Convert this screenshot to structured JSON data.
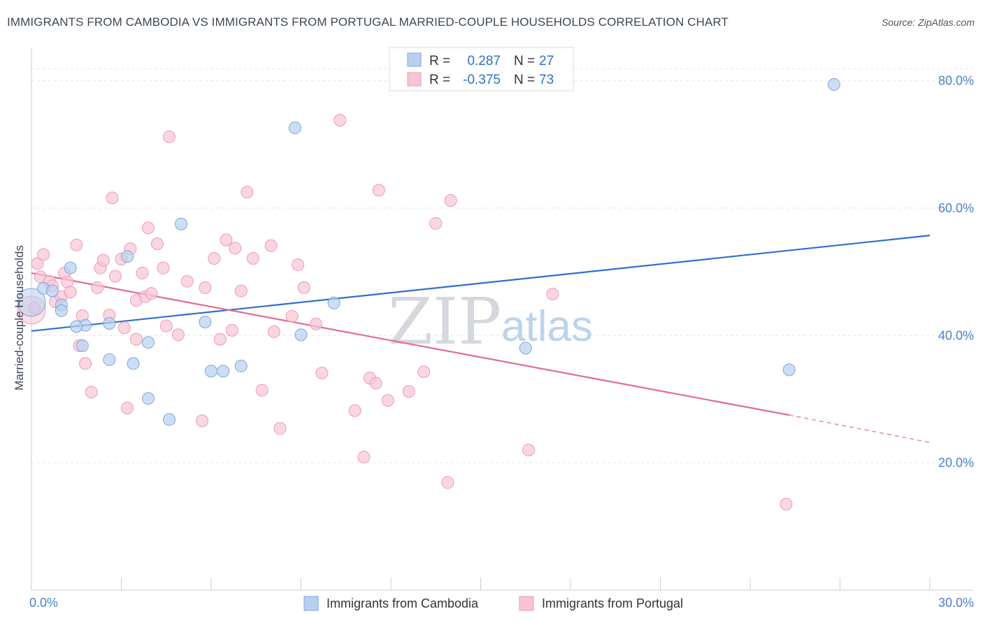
{
  "header": {
    "title": "IMMIGRANTS FROM CAMBODIA VS IMMIGRANTS FROM PORTUGAL MARRIED-COUPLE HOUSEHOLDS CORRELATION CHART",
    "source": "Source: ZipAtlas.com"
  },
  "legend": {
    "r_label": "R =",
    "n_label": "N =",
    "cambodia": {
      "r": "0.287",
      "n": "27"
    },
    "portugal": {
      "r": "-0.375",
      "n": "73"
    }
  },
  "watermark": {
    "zip": "ZIP",
    "atlas": "atlas"
  },
  "colors": {
    "cambodia_fill": "#b8d0f0",
    "cambodia_stroke": "#7ea6e0",
    "cambodia_line": "#2f6fce",
    "portugal_fill": "#f8c4d4",
    "portugal_stroke": "#ee9ab5",
    "portugal_line": "#e06c97"
  },
  "chart_data": {
    "type": "scatter",
    "ylabel": "Married-couple Households",
    "xlim": [
      0,
      30
    ],
    "ylim": [
      0,
      85
    ],
    "x_ticks": [
      "0.0%",
      "30.0%"
    ],
    "y_ticks": [
      {
        "v": 20,
        "label": "20.0%"
      },
      {
        "v": 40,
        "label": "40.0%"
      },
      {
        "v": 60,
        "label": "60.0%"
      },
      {
        "v": 80,
        "label": "80.0%"
      }
    ],
    "series": [
      {
        "name": "Immigrants from Cambodia",
        "points": [
          [
            0.0,
            45.2
          ],
          [
            0.4,
            47.4
          ],
          [
            1.0,
            44.8
          ],
          [
            1.3,
            50.6
          ],
          [
            1.0,
            43.9
          ],
          [
            1.8,
            41.6
          ],
          [
            1.7,
            38.4
          ],
          [
            2.6,
            41.9
          ],
          [
            2.6,
            36.2
          ],
          [
            3.2,
            52.4
          ],
          [
            3.4,
            35.6
          ],
          [
            3.9,
            38.9
          ],
          [
            3.9,
            30.1
          ],
          [
            4.6,
            26.8
          ],
          [
            5.0,
            57.5
          ],
          [
            5.8,
            42.1
          ],
          [
            6.0,
            34.4
          ],
          [
            6.4,
            34.4
          ],
          [
            7.0,
            35.2
          ],
          [
            8.8,
            72.6
          ],
          [
            9.0,
            40.1
          ],
          [
            10.1,
            45.1
          ],
          [
            16.5,
            38.0
          ],
          [
            25.3,
            34.6
          ],
          [
            26.8,
            79.4
          ],
          [
            0.7,
            47.0
          ],
          [
            1.5,
            41.4
          ]
        ],
        "trend": {
          "x0": 0.0,
          "y0": 40.7,
          "x1": 30.0,
          "y1": 55.7
        }
      },
      {
        "name": "Immigrants from Portugal",
        "points": [
          [
            0.0,
            44.0
          ],
          [
            0.2,
            51.3
          ],
          [
            0.4,
            52.7
          ],
          [
            0.3,
            49.2
          ],
          [
            0.6,
            48.5
          ],
          [
            0.8,
            45.3
          ],
          [
            0.7,
            47.8
          ],
          [
            1.0,
            46.1
          ],
          [
            1.1,
            49.8
          ],
          [
            1.2,
            48.4
          ],
          [
            1.3,
            46.8
          ],
          [
            1.5,
            54.2
          ],
          [
            1.6,
            38.4
          ],
          [
            1.7,
            43.1
          ],
          [
            1.8,
            35.6
          ],
          [
            2.0,
            31.1
          ],
          [
            2.2,
            47.5
          ],
          [
            2.3,
            50.6
          ],
          [
            2.4,
            51.8
          ],
          [
            2.6,
            43.2
          ],
          [
            2.7,
            61.6
          ],
          [
            2.8,
            49.3
          ],
          [
            3.0,
            52.0
          ],
          [
            3.1,
            41.2
          ],
          [
            3.2,
            28.6
          ],
          [
            3.3,
            53.6
          ],
          [
            3.5,
            39.4
          ],
          [
            3.5,
            45.5
          ],
          [
            3.7,
            49.8
          ],
          [
            3.8,
            46.1
          ],
          [
            3.9,
            56.9
          ],
          [
            4.0,
            46.6
          ],
          [
            4.2,
            54.4
          ],
          [
            4.4,
            50.6
          ],
          [
            4.5,
            41.5
          ],
          [
            4.6,
            71.2
          ],
          [
            4.9,
            40.1
          ],
          [
            5.2,
            48.5
          ],
          [
            5.7,
            26.6
          ],
          [
            5.8,
            47.5
          ],
          [
            6.1,
            52.1
          ],
          [
            6.3,
            39.4
          ],
          [
            6.5,
            55.0
          ],
          [
            6.7,
            40.8
          ],
          [
            6.8,
            53.7
          ],
          [
            7.0,
            47.0
          ],
          [
            7.2,
            62.5
          ],
          [
            7.4,
            52.1
          ],
          [
            7.7,
            31.4
          ],
          [
            8.0,
            54.1
          ],
          [
            8.1,
            40.6
          ],
          [
            8.3,
            25.4
          ],
          [
            8.7,
            43.0
          ],
          [
            8.9,
            51.1
          ],
          [
            9.1,
            47.5
          ],
          [
            9.5,
            41.8
          ],
          [
            9.7,
            34.1
          ],
          [
            10.3,
            73.8
          ],
          [
            10.8,
            28.2
          ],
          [
            11.1,
            20.9
          ],
          [
            11.3,
            33.3
          ],
          [
            11.5,
            32.5
          ],
          [
            11.6,
            62.8
          ],
          [
            11.9,
            29.8
          ],
          [
            12.6,
            31.2
          ],
          [
            13.1,
            34.3
          ],
          [
            13.5,
            57.6
          ],
          [
            13.9,
            16.9
          ],
          [
            14.0,
            61.2
          ],
          [
            16.6,
            22.0
          ],
          [
            17.4,
            46.5
          ],
          [
            25.2,
            13.5
          ],
          [
            0.1,
            44.3
          ]
        ],
        "trend": {
          "x0": 0.0,
          "y0": 49.8,
          "x1": 25.3,
          "y1": 27.5
        },
        "trend_dashed": {
          "x0": 25.3,
          "y0": 27.5,
          "x1": 30.0,
          "y1": 23.2
        }
      }
    ]
  }
}
